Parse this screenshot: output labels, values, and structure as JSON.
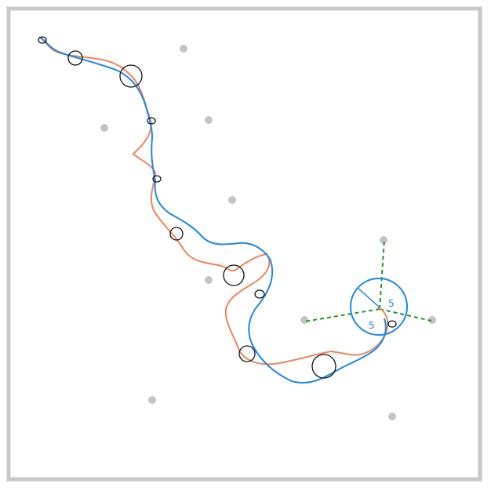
{
  "colors": {
    "border": "#c8c8c8",
    "background": "#ffffff",
    "landmark": "#c4c4c4",
    "predicted_path": "#1e88e5",
    "reference_path": "#f0845c",
    "waypoint": "#111111",
    "guide": "#1a9a1a",
    "sensor": "#1e88e5"
  },
  "legend": [],
  "sensor": {
    "labels": [
      "5",
      "5"
    ]
  }
}
